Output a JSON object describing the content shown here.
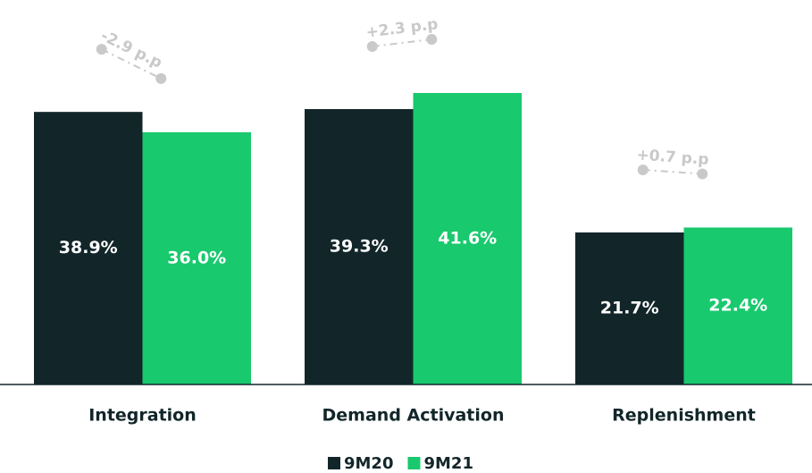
{
  "chart_data": {
    "type": "bar",
    "categories": [
      "Integration",
      "Demand Activation",
      "Replenishment"
    ],
    "series": [
      {
        "name": "9M20",
        "color": "#12262a",
        "values": [
          38.9,
          39.3,
          21.7
        ],
        "value_labels": [
          "38.9%",
          "39.3%",
          "21.7%"
        ]
      },
      {
        "name": "9M21",
        "color": "#18c96e",
        "values": [
          36.0,
          41.6,
          22.4
        ],
        "value_labels": [
          "36.0%",
          "41.6%",
          "22.4%"
        ]
      }
    ],
    "annotations": [
      "-2.9 p.p",
      "+2.3 p.p",
      "+0.7 p.p"
    ],
    "annotation_color": "#c9c9c9"
  }
}
